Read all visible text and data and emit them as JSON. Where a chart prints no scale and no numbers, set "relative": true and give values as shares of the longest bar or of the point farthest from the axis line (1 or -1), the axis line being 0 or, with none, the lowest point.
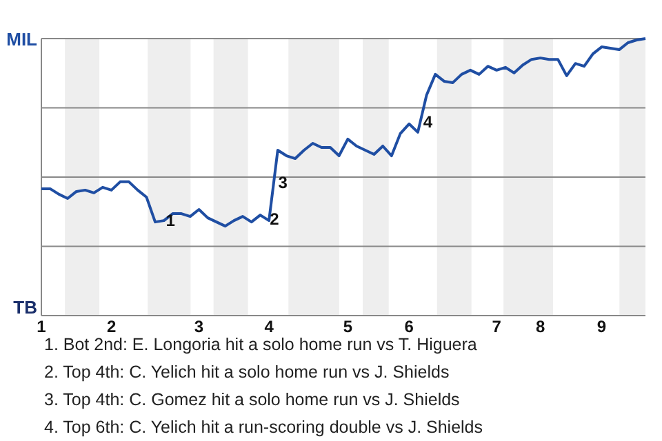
{
  "chart_data": {
    "type": "line",
    "color": "#1f4ea3",
    "relative": true,
    "categories": [
      "1",
      null,
      null,
      null,
      null,
      null,
      null,
      null,
      "2",
      null,
      null,
      null,
      null,
      null,
      null,
      null,
      null,
      null,
      "3",
      null,
      null,
      null,
      null,
      null,
      null,
      null,
      "4",
      null,
      null,
      null,
      null,
      null,
      null,
      null,
      null,
      "5",
      null,
      null,
      null,
      null,
      null,
      null,
      "6",
      null,
      null,
      null,
      null,
      null,
      null,
      null,
      null,
      null,
      "7",
      null,
      null,
      null,
      null,
      "8",
      null,
      null,
      null,
      null,
      null,
      null,
      "9",
      null,
      null,
      null,
      null,
      null
    ],
    "values": [
      0.458,
      0.458,
      0.438,
      0.423,
      0.448,
      0.453,
      0.443,
      0.463,
      0.453,
      0.483,
      0.483,
      0.453,
      0.428,
      0.338,
      0.343,
      0.368,
      0.368,
      0.358,
      0.383,
      0.353,
      0.338,
      0.323,
      0.343,
      0.358,
      0.338,
      0.363,
      0.343,
      0.597,
      0.577,
      0.567,
      0.597,
      0.622,
      0.607,
      0.607,
      0.577,
      0.637,
      0.612,
      0.597,
      0.582,
      0.612,
      0.577,
      0.657,
      0.692,
      0.662,
      0.796,
      0.871,
      0.846,
      0.841,
      0.871,
      0.886,
      0.871,
      0.9,
      0.886,
      0.896,
      0.876,
      0.905,
      0.925,
      0.93,
      0.925,
      0.925,
      0.866,
      0.91,
      0.9,
      0.945,
      0.97,
      0.965,
      0.96,
      0.985,
      0.995,
      1
    ],
    "grid": "y",
    "marker": "none",
    "line_style": "solid",
    "annotations": [
      "MIL",
      "TB",
      "1",
      "2",
      "3",
      "4",
      "1. Bot 2nd: E. Longoria hit a solo home run vs T. Higuera",
      "2. Top 4th: C. Yelich hit a solo home run vs J. Shields",
      "3. Top 4th: C. Gomez hit a solo home run vs J. Shields",
      "4. Top 6th: C. Yelich hit a run-scoring double vs J. Shields"
    ]
  }
}
